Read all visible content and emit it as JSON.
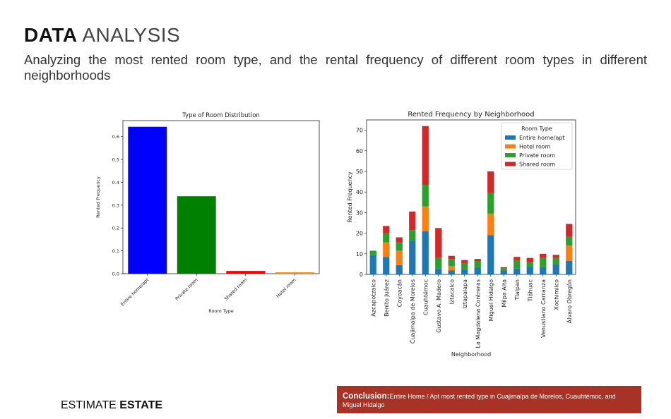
{
  "title": {
    "bold": "DATA",
    "light": "ANALYSIS"
  },
  "subtitle": "Analyzing the most rented room type, and the rental frequency of different room types in different neighborhoods",
  "brand": {
    "light": "ESTIMATE",
    "bold": "ESTATE"
  },
  "conclusion": {
    "label": "Conclusion:",
    "text": "Entire Home  / Apt most rented type in Cuajimalpa  de Morelos, Cuauhtémoc, and Miguel Hidalgo"
  },
  "colors": {
    "chart1": [
      "#0000ff",
      "#008000",
      "#ff0000",
      "#ff8c00"
    ],
    "chart2": [
      "#1f77b4",
      "#ff7f0e",
      "#2ca02c",
      "#d62728"
    ]
  },
  "chart_data": [
    {
      "type": "bar",
      "title": "Type of Room Distribution",
      "xlabel": "Room Type",
      "ylabel": "Rented Frequency",
      "categories": [
        "Entire home/apt",
        "Private room",
        "Shared room",
        "Hotel room"
      ],
      "values": [
        0.643,
        0.339,
        0.012,
        0.006
      ],
      "ylim": [
        0,
        0.67
      ],
      "yticks": [
        0.0,
        0.1,
        0.2,
        0.3,
        0.4,
        0.5,
        0.6
      ],
      "ytick_labels": [
        "0.0",
        "0.1",
        "0.2",
        "0.3",
        "0.4",
        "0.5",
        "0.6"
      ],
      "grid": false
    },
    {
      "type": "bar",
      "stacked": true,
      "title": "Rented Frequency by Neighborhood",
      "xlabel": "Neighborhood",
      "ylabel": "Rented Frequency",
      "legend_title": "Room Type",
      "legend_position": "top-right",
      "categories": [
        "Azcapotzalco",
        "Benito Juárez",
        "Coyoacán",
        "Cuajimalpa de Morelos",
        "Cuauhtémoc",
        "Gustavo A. Madero",
        "Iztacalco",
        "Iztapalapa",
        "La Magdalena Contreras",
        "Miguel Hidalgo",
        "Milpa Alta",
        "Tlalpan",
        "Tláhuac",
        "Venustiano Carranza",
        "Xochimilco",
        "Álvaro Obregón"
      ],
      "series": [
        {
          "name": "Entire home/apt",
          "values": [
            9.5,
            8.5,
            4.5,
            16.5,
            21,
            3,
            2,
            2.5,
            3.5,
            19,
            2,
            3,
            4,
            3.5,
            5,
            6.5
          ]
        },
        {
          "name": "Hotel room",
          "values": [
            0,
            7,
            7,
            0,
            12,
            0,
            2,
            0,
            0,
            10.5,
            0,
            0,
            0,
            0,
            0,
            7.5
          ]
        },
        {
          "name": "Private room",
          "values": [
            2,
            4.5,
            4,
            5,
            10.5,
            5,
            3.5,
            3,
            3,
            10,
            1,
            4,
            2,
            4.5,
            3,
            4.5
          ]
        },
        {
          "name": "Shared room",
          "values": [
            0,
            3.5,
            2.5,
            9,
            28.5,
            14.5,
            1.5,
            1.5,
            1,
            10.5,
            0.5,
            1.5,
            2,
            2,
            1.5,
            6
          ]
        }
      ],
      "ylim": [
        0,
        75
      ],
      "yticks": [
        0,
        10,
        20,
        30,
        40,
        50,
        60,
        70
      ],
      "ytick_labels": [
        "0",
        "10",
        "20",
        "30",
        "40",
        "50",
        "60",
        "70"
      ],
      "grid": false
    }
  ]
}
